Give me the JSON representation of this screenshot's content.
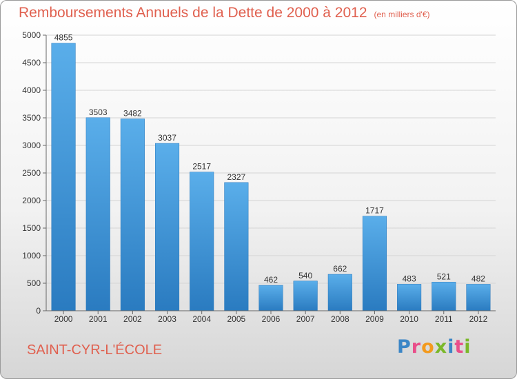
{
  "header": {
    "title": "Remboursements Annuels de la Dette de 2000 à 2012",
    "subtitle": "(en milliers d'€)"
  },
  "footer": {
    "city": "SAINT-CYR-L'ÉCOLE",
    "logo_letters": [
      "P",
      "r",
      "o",
      "x",
      "i",
      "t",
      "i"
    ],
    "logo_colors": [
      "#3b86c6",
      "#e94e8a",
      "#f39a1e",
      "#7ab829",
      "#3b86c6",
      "#e94e8a",
      "#7ab829"
    ]
  },
  "chart_data": {
    "type": "bar",
    "title": "Remboursements Annuels de la Dette de 2000 à 2012",
    "categories": [
      "2000",
      "2001",
      "2002",
      "2003",
      "2004",
      "2005",
      "2006",
      "2007",
      "2008",
      "2009",
      "2010",
      "2011",
      "2012"
    ],
    "values": [
      4855,
      3503,
      3482,
      3037,
      2517,
      2327,
      462,
      540,
      662,
      1717,
      483,
      521,
      482
    ],
    "ylim": [
      0,
      5000
    ],
    "yticks": [
      0,
      500,
      1000,
      1500,
      2000,
      2500,
      3000,
      3500,
      4000,
      4500,
      5000
    ],
    "grid": true,
    "bar_color": "#3d93d6"
  }
}
